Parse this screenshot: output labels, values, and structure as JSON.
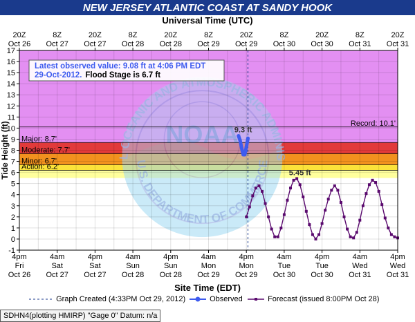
{
  "title": "NEW JERSEY ATLANTIC COAST AT SANDY HOOK",
  "top_axis_title": "Universal Time (UTC)",
  "bottom_axis_title": "Site Time (EDT)",
  "footer": "SDHN4(plotting HMIRP) \"Gage 0\" Datum: n/a",
  "legend": {
    "created": "Graph Created (4:33PM Oct 29, 2012)",
    "observed": "Observed",
    "forecast": "Forecast (issued 8:00PM Oct 28)"
  },
  "info_box": {
    "line1": "Latest observed value: 9.08 ft at 4:06 PM EDT",
    "line2_date": "29-Oct-2012.",
    "line2_flood": "Flood Stage is 6.7 ft"
  },
  "watermark": {
    "center": "NOAA",
    "ring_top": "NATIONAL OCEANIC AND ATMOSPHERIC ADMINISTRATION",
    "ring_bottom": "U.S. DEPARTMENT OF COMMERCE"
  },
  "chart_data": {
    "type": "line",
    "ylabel": "Tide Height (ft)",
    "ylim": [
      -1,
      17
    ],
    "yticks": [
      -1,
      0,
      1,
      2,
      3,
      4,
      5,
      6,
      7,
      8,
      9,
      10,
      11,
      12,
      13,
      14,
      15,
      16,
      17
    ],
    "xlim_hours": [
      0,
      120
    ],
    "top_ticks": [
      {
        "l1": "20Z",
        "l2": "Oct 26"
      },
      {
        "l1": "8Z",
        "l2": "Oct 27"
      },
      {
        "l1": "20Z",
        "l2": "Oct 27"
      },
      {
        "l1": "8Z",
        "l2": "Oct 28"
      },
      {
        "l1": "20Z",
        "l2": "Oct 28"
      },
      {
        "l1": "8Z",
        "l2": "Oct 29"
      },
      {
        "l1": "20Z",
        "l2": "Oct 29"
      },
      {
        "l1": "8Z",
        "l2": "Oct 30"
      },
      {
        "l1": "20Z",
        "l2": "Oct 30"
      },
      {
        "l1": "8Z",
        "l2": "Oct 31"
      },
      {
        "l1": "20Z",
        "l2": "Oct 31"
      }
    ],
    "bottom_ticks": [
      {
        "l1": "4pm",
        "l2": "Fri",
        "l3": "Oct 26"
      },
      {
        "l1": "4am",
        "l2": "Sat",
        "l3": "Oct 27"
      },
      {
        "l1": "4pm",
        "l2": "Sat",
        "l3": "Oct 27"
      },
      {
        "l1": "4am",
        "l2": "Sun",
        "l3": "Oct 28"
      },
      {
        "l1": "4pm",
        "l2": "Sun",
        "l3": "Oct 28"
      },
      {
        "l1": "4am",
        "l2": "Mon",
        "l3": "Oct 29"
      },
      {
        "l1": "4pm",
        "l2": "Mon",
        "l3": "Oct 29"
      },
      {
        "l1": "4am",
        "l2": "Tue",
        "l3": "Oct 30"
      },
      {
        "l1": "4pm",
        "l2": "Tue",
        "l3": "Oct 30"
      },
      {
        "l1": "4am",
        "l2": "Wed",
        "l3": "Oct 31"
      },
      {
        "l1": "4pm",
        "l2": "Wed",
        "l3": "Oct 31"
      }
    ],
    "stages": [
      {
        "name": "Record",
        "label": "Record: 10.1'",
        "value": 10.1,
        "color": "#e38ff2"
      },
      {
        "name": "Major",
        "label": "Major: 8.7'",
        "value": 8.7,
        "color": "#e23a3a"
      },
      {
        "name": "Moderate",
        "label": "Moderate: 7.7'",
        "value": 7.7,
        "color": "#f2911e"
      },
      {
        "name": "Minor",
        "label": "Minor: 6.7'",
        "value": 6.7,
        "color": "#fbe23a"
      },
      {
        "name": "Action",
        "label": "Action: 6.2'",
        "value": 6.2,
        "color": "#ffff9c"
      }
    ],
    "graph_created_hour": 72.5,
    "annotations": [
      {
        "text": "9.3 ft",
        "x": 71,
        "y": 9.3
      },
      {
        "text": "5.45 ft",
        "x": 89,
        "y": 5.45
      }
    ],
    "series": [
      {
        "name": "Observed",
        "color": "#3d5bef",
        "x": [
          69.5,
          70,
          70.5,
          71,
          71.5,
          72,
          72.5
        ],
        "y": [
          9.3,
          8.9,
          8.2,
          7.6,
          7.6,
          8.3,
          9.08
        ]
      },
      {
        "name": "Forecast",
        "color": "#5a0a6e",
        "x": [
          72,
          73,
          74,
          75,
          76,
          77,
          78,
          79,
          80,
          81,
          82,
          83,
          84,
          85,
          86,
          87,
          88,
          89,
          90,
          91,
          92,
          93,
          94,
          95,
          96,
          97,
          98,
          99,
          100,
          101,
          102,
          103,
          104,
          105,
          106,
          107,
          108,
          109,
          110,
          111,
          112,
          113,
          114,
          115,
          116,
          117,
          118,
          119,
          120
        ],
        "y": [
          2.0,
          2.9,
          3.9,
          4.6,
          4.8,
          4.3,
          3.2,
          2.0,
          0.9,
          0.2,
          0.2,
          1.0,
          2.2,
          3.5,
          4.6,
          5.3,
          5.45,
          4.9,
          3.8,
          2.5,
          1.3,
          0.4,
          0.0,
          0.4,
          1.4,
          2.6,
          3.6,
          4.4,
          4.8,
          4.4,
          3.3,
          2.0,
          0.9,
          0.2,
          0.1,
          0.6,
          1.7,
          3.0,
          4.1,
          4.9,
          5.3,
          5.1,
          4.3,
          3.1,
          1.9,
          1.0,
          0.4,
          0.2,
          0.1
        ]
      }
    ]
  }
}
